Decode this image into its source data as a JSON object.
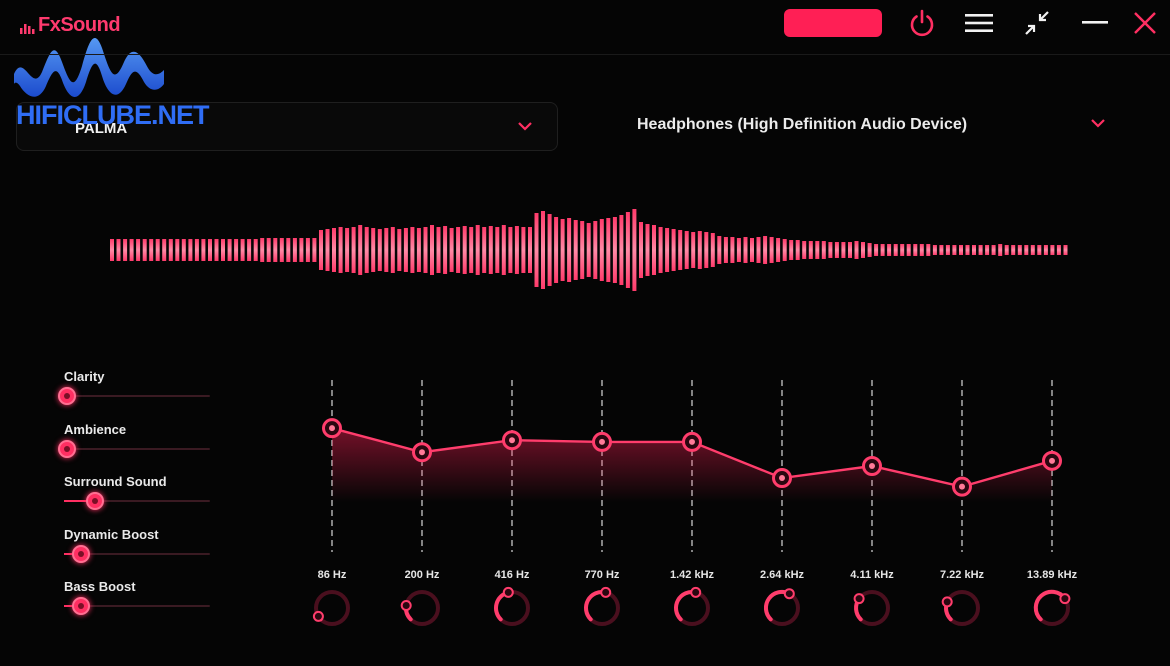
{
  "app": {
    "name": "FxSound",
    "watermark": "HIFICLUBE.NET"
  },
  "titlebar": {
    "pro_button_label": "",
    "icons": [
      "power-icon",
      "menu-icon",
      "minimize-to-mini-icon",
      "minimize-icon",
      "close-icon"
    ],
    "accent_color": "#ff1f55"
  },
  "preset": {
    "selected": "PALMA"
  },
  "output_device": {
    "selected": "Headphones (High Definition Audio Device)"
  },
  "visualizer": {
    "levels": [
      0.22,
      0.22,
      0.22,
      0.22,
      0.22,
      0.22,
      0.22,
      0.22,
      0.22,
      0.22,
      0.22,
      0.22,
      0.22,
      0.22,
      0.22,
      0.22,
      0.22,
      0.22,
      0.22,
      0.22,
      0.22,
      0.22,
      0.22,
      0.24,
      0.24,
      0.24,
      0.24,
      0.24,
      0.24,
      0.24,
      0.24,
      0.24,
      0.4,
      0.42,
      0.44,
      0.46,
      0.44,
      0.46,
      0.5,
      0.46,
      0.44,
      0.42,
      0.44,
      0.46,
      0.42,
      0.44,
      0.46,
      0.44,
      0.46,
      0.5,
      0.46,
      0.48,
      0.44,
      0.46,
      0.48,
      0.46,
      0.5,
      0.46,
      0.48,
      0.46,
      0.5,
      0.46,
      0.48,
      0.46,
      0.46,
      0.74,
      0.78,
      0.72,
      0.66,
      0.62,
      0.64,
      0.6,
      0.58,
      0.54,
      0.58,
      0.62,
      0.64,
      0.66,
      0.7,
      0.76,
      0.82,
      0.56,
      0.52,
      0.5,
      0.46,
      0.44,
      0.42,
      0.4,
      0.38,
      0.36,
      0.38,
      0.36,
      0.34,
      0.28,
      0.26,
      0.26,
      0.24,
      0.26,
      0.24,
      0.26,
      0.28,
      0.26,
      0.24,
      0.22,
      0.2,
      0.2,
      0.18,
      0.18,
      0.18,
      0.18,
      0.16,
      0.16,
      0.16,
      0.16,
      0.18,
      0.16,
      0.14,
      0.12,
      0.12,
      0.12,
      0.12,
      0.12,
      0.12,
      0.12,
      0.12,
      0.12,
      0.1,
      0.1,
      0.1,
      0.1,
      0.1,
      0.1,
      0.1,
      0.1,
      0.1,
      0.1,
      0.12,
      0.1,
      0.1,
      0.1,
      0.1,
      0.1,
      0.1,
      0.1,
      0.1,
      0.1,
      0.1
    ]
  },
  "effects": [
    {
      "label": "Clarity",
      "value": 0.0
    },
    {
      "label": "Ambience",
      "value": 0.0
    },
    {
      "label": "Surround Sound",
      "value": 0.2
    },
    {
      "label": "Dynamic Boost",
      "value": 0.1
    },
    {
      "label": "Bass Boost",
      "value": 0.1
    }
  ],
  "equalizer": {
    "bands": [
      {
        "label": "86 Hz",
        "level": 0.72,
        "knob": 0.05
      },
      {
        "label": "200 Hz",
        "level": 0.58,
        "knob": 0.2
      },
      {
        "label": "416 Hz",
        "level": 0.65,
        "knob": 0.45
      },
      {
        "label": "770 Hz",
        "level": 0.64,
        "knob": 0.55
      },
      {
        "label": "1.42 kHz",
        "level": 0.64,
        "knob": 0.55
      },
      {
        "label": "2.64 kHz",
        "level": 0.43,
        "knob": 0.6
      },
      {
        "label": "4.11 kHz",
        "level": 0.5,
        "knob": 0.3
      },
      {
        "label": "7.22 kHz",
        "level": 0.38,
        "knob": 0.25
      },
      {
        "label": "13.89 kHz",
        "level": 0.53,
        "knob": 0.7
      }
    ]
  }
}
